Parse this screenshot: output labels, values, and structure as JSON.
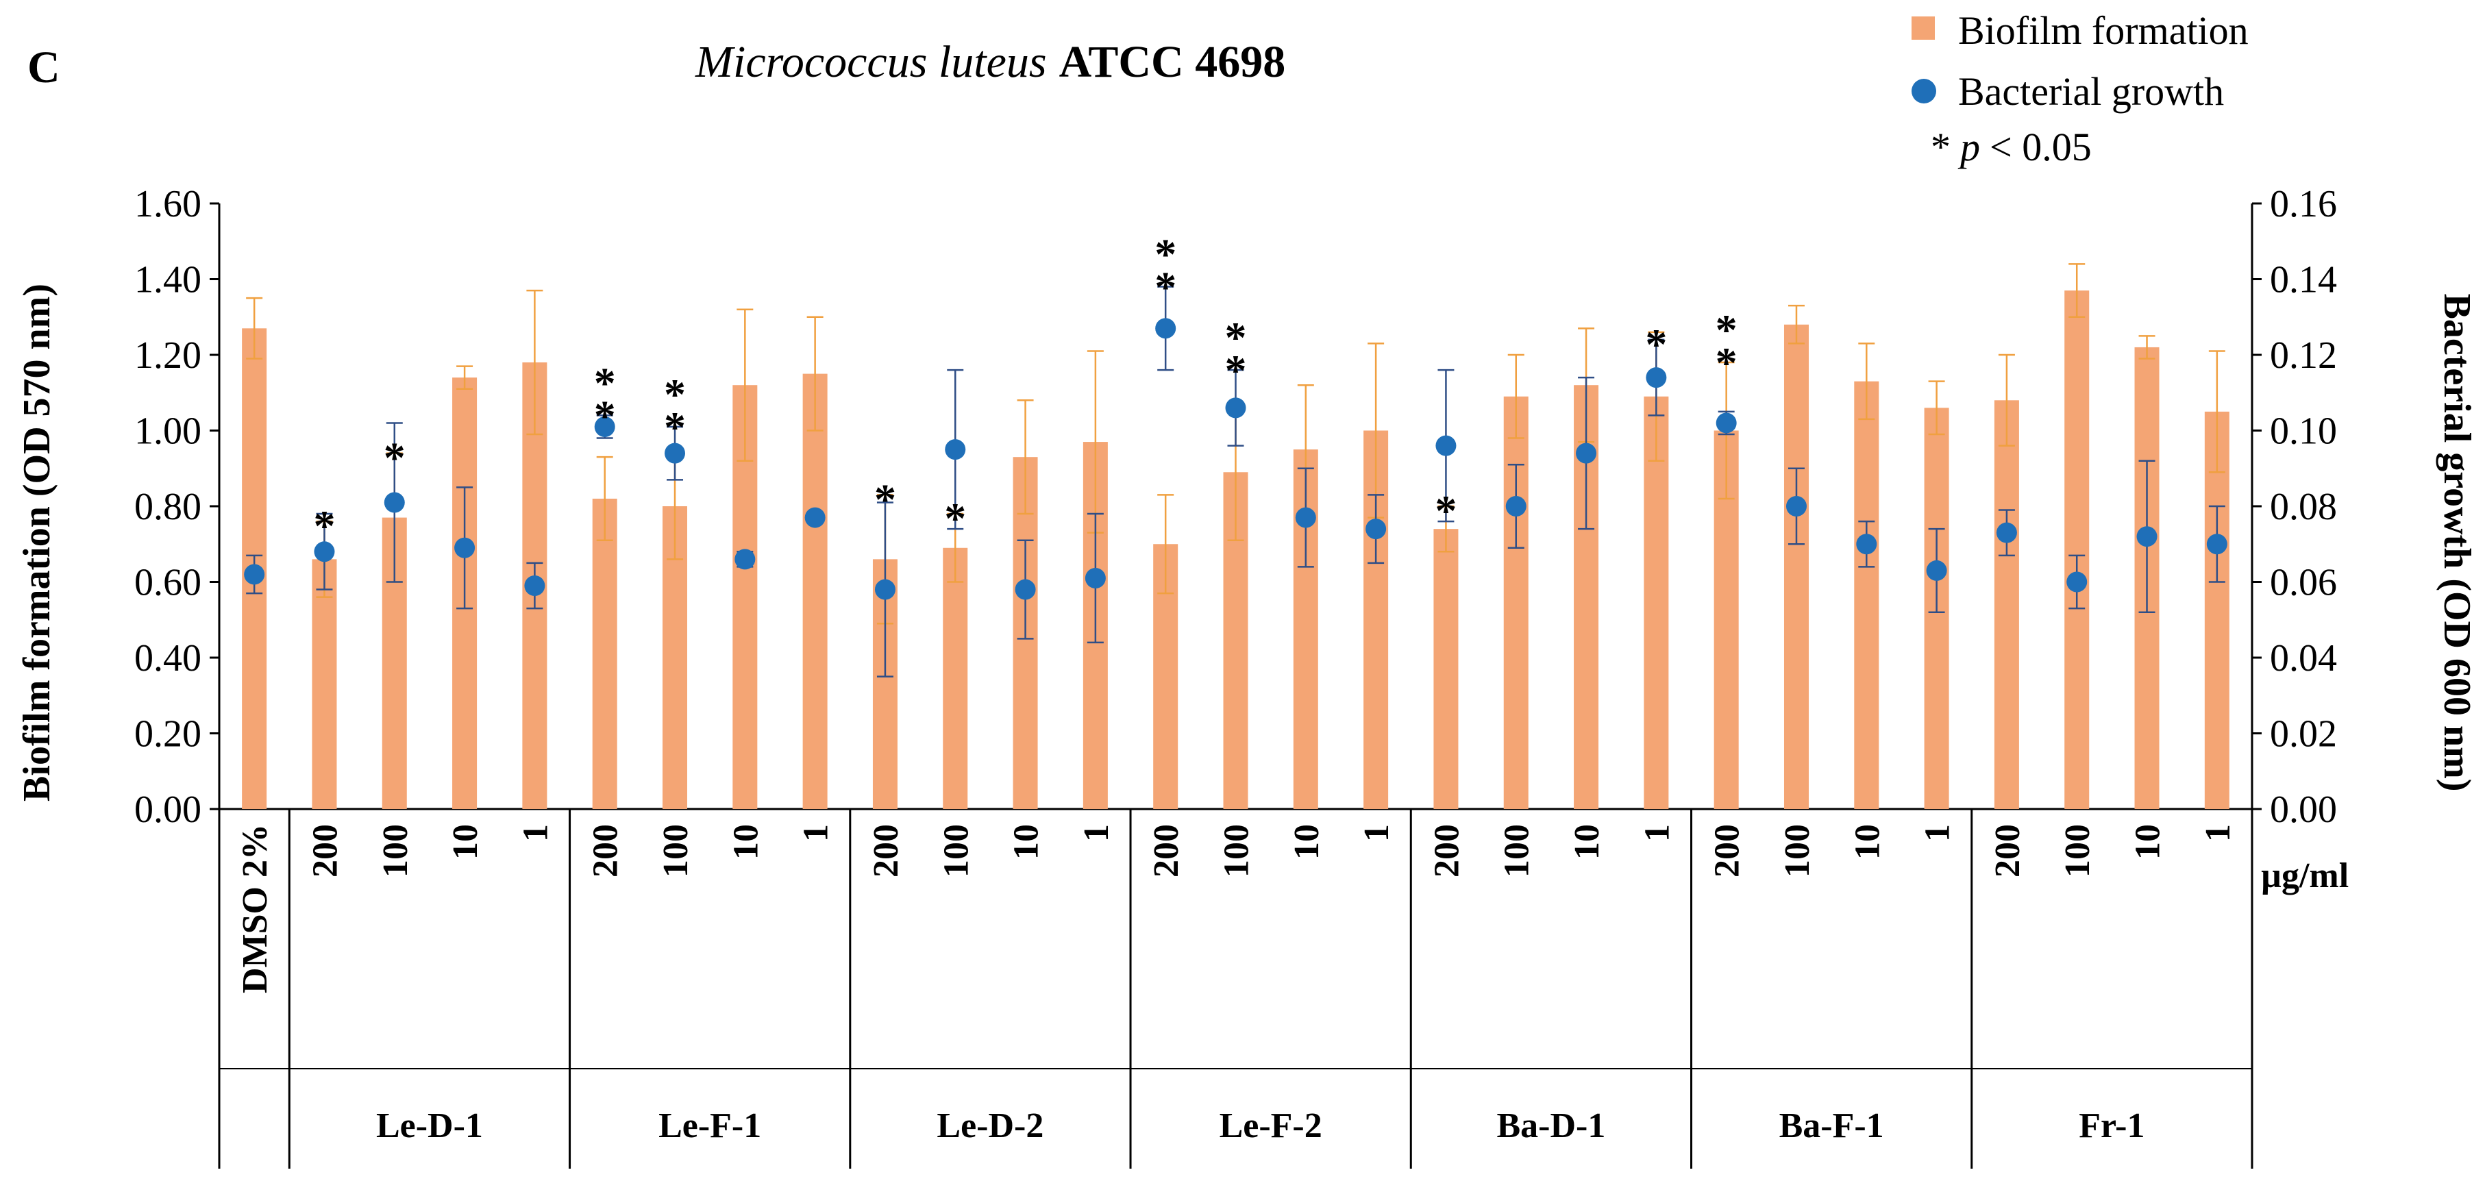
{
  "panel_label": "C",
  "title": {
    "organism": "Micrococcus luteus",
    "strain": "ATCC 4698"
  },
  "legend": {
    "biofilm": "Biofilm formation",
    "growth": "Bacterial growth",
    "sig_star": "*",
    "sig_p": "p",
    "sig_rest": "< 0.05"
  },
  "unit_label": "µg/ml",
  "colors": {
    "biofilm": "#F4A574",
    "biofilm_err": "#F0A040",
    "growth": "#1F6FB8",
    "growth_err": "#2F4E86",
    "star_biofilm": "#F39A1E",
    "star_growth": "#1F6FB8"
  },
  "chart_data": {
    "type": "bar",
    "title": "Micrococcus luteus ATCC 4698",
    "ylabel_left": "Biofilm formation (OD 570 nm)",
    "ylabel_right": "Bacterial growth (OD 600 nm)",
    "ylim_left": [
      0,
      1.6
    ],
    "ylim_right": [
      0,
      0.16
    ],
    "yticks_left": [
      "0.00",
      "0.20",
      "0.40",
      "0.60",
      "0.80",
      "1.00",
      "1.20",
      "1.40",
      "1.60"
    ],
    "yticks_right": [
      "0.00",
      "0.02",
      "0.04",
      "0.06",
      "0.08",
      "0.10",
      "0.12",
      "0.14",
      "0.16"
    ],
    "grid": false,
    "legend_position": "top-right",
    "categories": [
      "DMSO 2%",
      "200",
      "100",
      "10",
      "1",
      "200",
      "100",
      "10",
      "1",
      "200",
      "100",
      "10",
      "1",
      "200",
      "100",
      "10",
      "1",
      "200",
      "100",
      "10",
      "1",
      "200",
      "100",
      "10",
      "1",
      "200",
      "100",
      "10",
      "1"
    ],
    "groups": [
      {
        "label": "",
        "start": 0,
        "count": 1
      },
      {
        "label": "Le-D-1",
        "start": 1,
        "count": 4
      },
      {
        "label": "Le-F-1",
        "start": 5,
        "count": 4
      },
      {
        "label": "Le-D-2",
        "start": 9,
        "count": 4
      },
      {
        "label": "Le-F-2",
        "start": 13,
        "count": 4
      },
      {
        "label": "Ba-D-1",
        "start": 17,
        "count": 4
      },
      {
        "label": "Ba-F-1",
        "start": 21,
        "count": 4
      },
      {
        "label": "Fr-1",
        "start": 25,
        "count": 4
      }
    ],
    "series": [
      {
        "name": "Biofilm formation",
        "kind": "bar",
        "axis": "left",
        "values": [
          1.27,
          0.66,
          0.77,
          1.14,
          1.18,
          0.82,
          0.8,
          1.12,
          1.15,
          0.66,
          0.69,
          0.93,
          0.97,
          0.7,
          0.89,
          0.95,
          1.0,
          0.74,
          1.09,
          1.12,
          1.09,
          1.0,
          1.28,
          1.13,
          1.06,
          1.08,
          1.37,
          1.22,
          1.05
        ],
        "error": [
          0.08,
          0.1,
          0.17,
          0.03,
          0.19,
          0.11,
          0.14,
          0.2,
          0.15,
          0.17,
          0.09,
          0.15,
          0.24,
          0.13,
          0.18,
          0.17,
          0.23,
          0.06,
          0.11,
          0.15,
          0.17,
          0.18,
          0.05,
          0.1,
          0.07,
          0.12,
          0.07,
          0.03,
          0.16
        ],
        "significant": [
          false,
          true,
          true,
          false,
          false,
          true,
          true,
          false,
          false,
          true,
          true,
          false,
          false,
          true,
          true,
          false,
          false,
          true,
          false,
          false,
          false,
          true,
          false,
          false,
          false,
          false,
          false,
          false,
          false
        ]
      },
      {
        "name": "Bacterial growth",
        "kind": "scatter",
        "axis": "right",
        "values": [
          0.062,
          0.068,
          0.081,
          0.069,
          0.059,
          0.101,
          0.094,
          0.066,
          0.077,
          0.058,
          0.095,
          0.058,
          0.061,
          0.127,
          0.106,
          0.077,
          0.074,
          0.096,
          0.08,
          0.094,
          0.114,
          0.102,
          0.08,
          0.07,
          0.063,
          0.073,
          0.06,
          0.072,
          0.07
        ],
        "error": [
          0.005,
          0.01,
          0.021,
          0.016,
          0.006,
          0.003,
          0.007,
          0.002,
          0.001,
          0.023,
          0.021,
          0.013,
          0.017,
          0.011,
          0.01,
          0.013,
          0.009,
          0.02,
          0.011,
          0.02,
          0.01,
          0.003,
          0.01,
          0.006,
          0.011,
          0.006,
          0.007,
          0.02,
          0.01
        ],
        "significant": [
          false,
          false,
          false,
          false,
          false,
          true,
          true,
          false,
          false,
          false,
          false,
          false,
          false,
          true,
          true,
          false,
          false,
          false,
          false,
          false,
          true,
          true,
          false,
          false,
          false,
          false,
          false,
          false,
          false
        ]
      }
    ]
  }
}
